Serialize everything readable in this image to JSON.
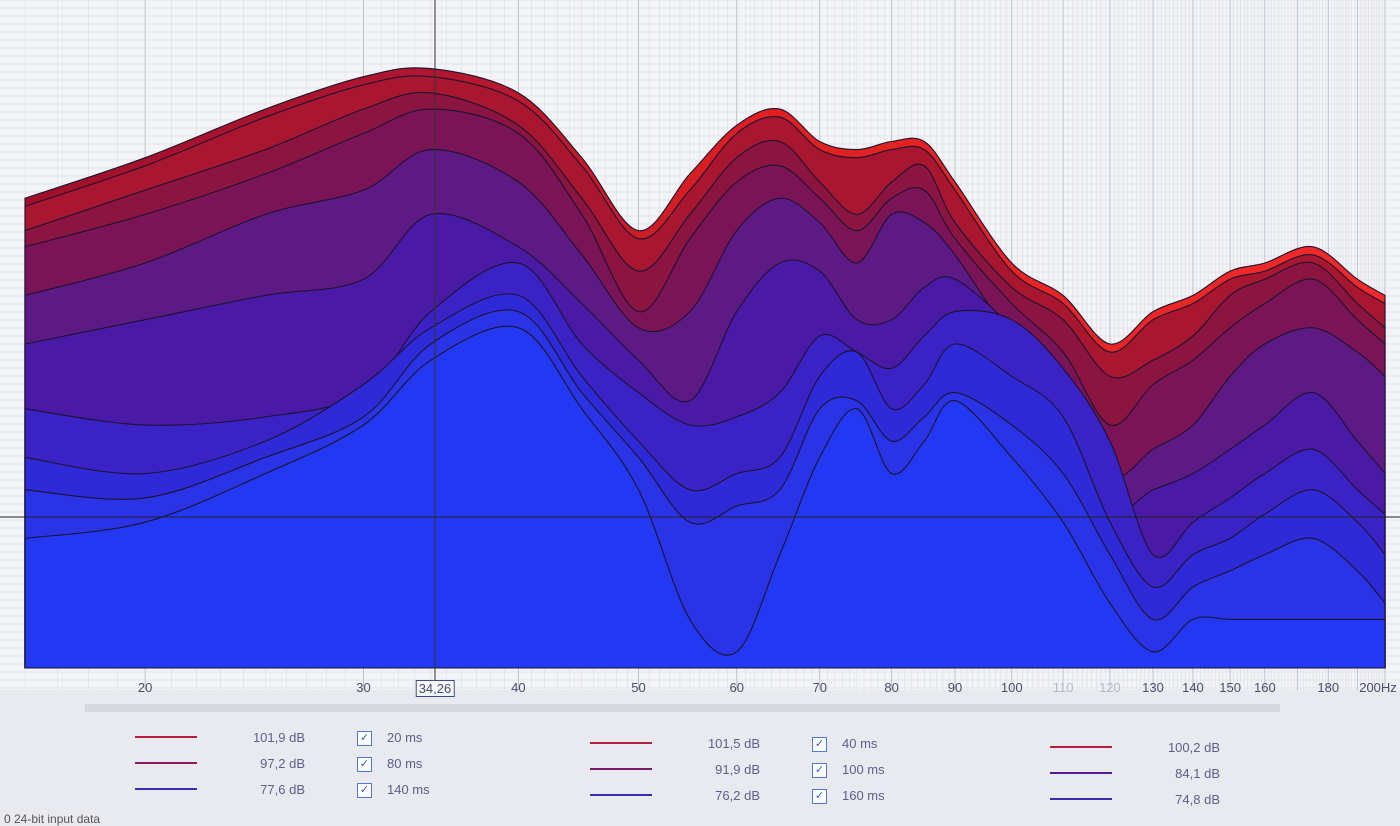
{
  "app": {
    "status_text": "0     24-bit input data"
  },
  "axis": {
    "freq_labels": [
      {
        "text": "20",
        "hz": 20
      },
      {
        "text": "30",
        "hz": 30
      },
      {
        "text": "34,26",
        "hz": 34.26,
        "cursor": true
      },
      {
        "text": "40",
        "hz": 40
      },
      {
        "text": "50",
        "hz": 50
      },
      {
        "text": "60",
        "hz": 60
      },
      {
        "text": "70",
        "hz": 70
      },
      {
        "text": "80",
        "hz": 80
      },
      {
        "text": "90",
        "hz": 90
      },
      {
        "text": "100",
        "hz": 100
      },
      {
        "text": "110",
        "hz": 110,
        "faint": true
      },
      {
        "text": "120",
        "hz": 120,
        "faint": true
      },
      {
        "text": "130",
        "hz": 130
      },
      {
        "text": "140",
        "hz": 140
      },
      {
        "text": "150",
        "hz": 150
      },
      {
        "text": "160",
        "hz": 160
      },
      {
        "text": "180",
        "hz": 180
      },
      {
        "text": "200Hz",
        "hz": 200
      }
    ],
    "cursor_hz": 34.26
  },
  "legend": {
    "columns": [
      {
        "entries": [
          {
            "db": "101,9 dB",
            "ms": "20 ms",
            "checked": true,
            "color": "#b3203a"
          },
          {
            "db": "97,2 dB",
            "ms": "80 ms",
            "checked": true,
            "color": "#8a1a5a"
          },
          {
            "db": "77,6 dB",
            "ms": "140 ms",
            "checked": true,
            "color": "#3a2ab0"
          }
        ]
      },
      {
        "entries": [
          {
            "db": "101,5 dB",
            "ms": "40 ms",
            "checked": true,
            "color": "#b3203a"
          },
          {
            "db": "91,9 dB",
            "ms": "100 ms",
            "checked": true,
            "color": "#7a1a6a"
          },
          {
            "db": "76,2 dB",
            "ms": "160 ms",
            "checked": true,
            "color": "#3a2ab0"
          }
        ]
      },
      {
        "entries": [
          {
            "db": "100,2 dB",
            "color": "#b3203a"
          },
          {
            "db": "84,1 dB",
            "color": "#5a1a90"
          },
          {
            "db": "74,8 dB",
            "color": "#3a2ab0"
          }
        ]
      }
    ]
  },
  "chart_data": {
    "type": "area",
    "x_scale": "log",
    "xlim": [
      16,
      200
    ],
    "x": [
      16,
      20,
      25,
      30,
      34,
      40,
      45,
      50,
      55,
      60,
      65,
      70,
      75,
      80,
      85,
      90,
      100,
      110,
      120,
      130,
      140,
      150,
      160,
      175,
      190,
      200
    ],
    "series": [
      {
        "values": [
          22,
          27,
          33,
          37,
          38,
          35,
          27,
          18,
          25,
          31,
          33,
          29,
          28,
          29,
          29,
          24,
          14,
          10,
          4,
          8,
          10,
          13,
          14,
          16,
          12,
          10
        ]
      },
      {
        "values": [
          21,
          26,
          32,
          36,
          37,
          34,
          26,
          17,
          23,
          30,
          32,
          28,
          27,
          28,
          28,
          23,
          13,
          9,
          3,
          7,
          9,
          12,
          13,
          15,
          11,
          9
        ]
      },
      {
        "values": [
          18,
          23,
          28,
          33,
          35,
          31,
          22,
          13,
          20,
          27,
          29,
          24,
          20,
          24,
          26,
          19,
          11,
          7,
          0,
          2,
          5,
          10,
          12,
          14,
          9,
          6
        ]
      },
      {
        "values": [
          16,
          20,
          25,
          30,
          33,
          30,
          20,
          8,
          17,
          24,
          26,
          22,
          18,
          22,
          23,
          17,
          9,
          3,
          -6,
          -1,
          2,
          6,
          9,
          12,
          7,
          4
        ]
      },
      {
        "values": [
          10,
          14,
          20,
          23,
          28,
          24,
          15,
          6,
          8,
          18,
          22,
          19,
          14,
          20,
          19,
          15,
          5,
          0,
          -12,
          -9,
          -6,
          0,
          4,
          6,
          3,
          0
        ]
      },
      {
        "values": [
          4,
          7,
          10,
          12,
          20,
          16,
          9,
          2,
          -3,
          8,
          14,
          13,
          7,
          7,
          11,
          12,
          6,
          -2,
          -16,
          -14,
          -12,
          -9,
          -6,
          -2,
          -8,
          -12
        ]
      },
      {
        "values": [
          -4,
          -6,
          -5,
          -2,
          8,
          14,
          4,
          -2,
          -6,
          -5,
          -2,
          5,
          3,
          1,
          5,
          8,
          7,
          1,
          -8,
          -22,
          -18,
          -15,
          -12,
          -9,
          -14,
          -17
        ]
      },
      {
        "values": [
          -10,
          -12,
          -8,
          -1,
          6,
          10,
          0,
          -8,
          -14,
          -12,
          -10,
          0,
          3,
          -4,
          -1,
          4,
          0,
          -5,
          -18,
          -26,
          -22,
          -20,
          -17,
          -14,
          -18,
          -22
        ]
      },
      {
        "values": [
          -14,
          -15,
          -10,
          -5,
          4,
          8,
          -2,
          -10,
          -18,
          -16,
          -14,
          -4,
          -3,
          -8,
          -5,
          -2,
          -6,
          -12,
          -22,
          -30,
          -26,
          -24,
          -22,
          -20,
          -24,
          -28
        ]
      },
      {
        "values": [
          -20,
          -18,
          -12,
          -6,
          2,
          6,
          -4,
          -14,
          -30,
          -34,
          -22,
          -10,
          -4,
          -12,
          -8,
          -3,
          -10,
          -18,
          -28,
          -34,
          -30,
          -30,
          -30,
          -30,
          -30,
          -30
        ]
      }
    ],
    "ylim": [
      -36,
      44
    ],
    "grid": true
  }
}
